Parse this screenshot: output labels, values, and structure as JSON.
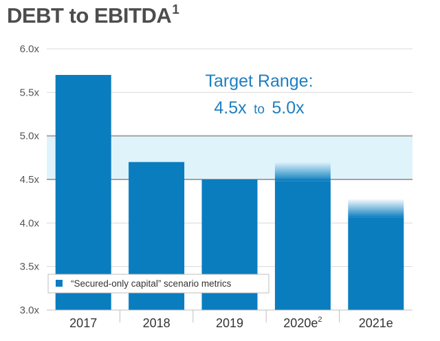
{
  "header": {
    "title": "DEBT to EBITDA",
    "title_sup": "1"
  },
  "colors": {
    "bar": "#0a7dbf",
    "band": "#dff3fb",
    "band_line": "#a3a3a3",
    "grid": "#d9d9d9",
    "annotation": "#1f7fc1"
  },
  "chart_data": {
    "type": "bar",
    "title": "DEBT to EBITDA",
    "categories": [
      "2017",
      "2018",
      "2019",
      "2020e",
      "2021e"
    ],
    "category_superscripts": [
      "",
      "",
      "",
      "2",
      ""
    ],
    "values": [
      5.7,
      4.7,
      4.5,
      4.7,
      4.28
    ],
    "faded_top": [
      false,
      false,
      false,
      true,
      true
    ],
    "ylim": [
      3.0,
      6.0
    ],
    "yticks": [
      3.0,
      3.5,
      4.0,
      4.5,
      5.0,
      5.5,
      6.0
    ],
    "ytick_labels": [
      "3.0x",
      "3.5x",
      "4.0x",
      "4.5x",
      "5.0x",
      "5.5x",
      "6.0x"
    ],
    "grid": true,
    "target_band": {
      "low": 4.5,
      "high": 5.0
    },
    "annotation": {
      "line1": "Target Range:",
      "low": "4.5x",
      "sep": "to",
      "high": "5.0x"
    },
    "legend": {
      "label": "“Secured-only capital” scenario metrics",
      "placement": "bottom-left"
    }
  }
}
